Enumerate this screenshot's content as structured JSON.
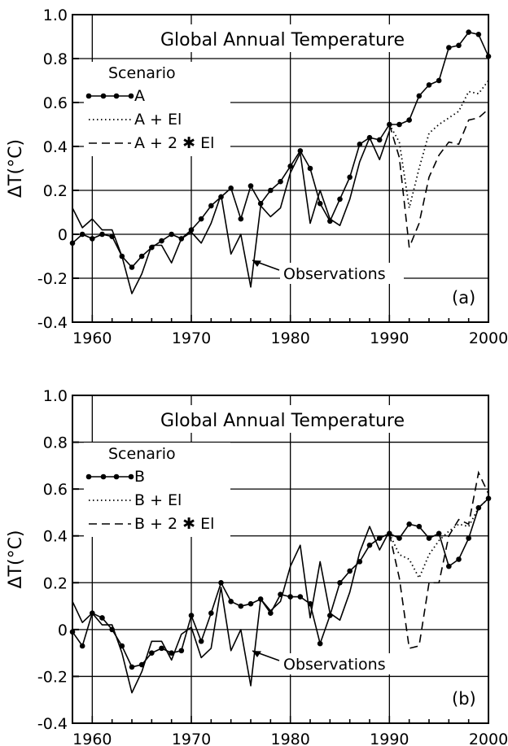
{
  "chart_data": [
    {
      "type": "line",
      "panel_label": "(a)",
      "title": "Global Annual Temperature",
      "xlabel": "",
      "ylabel": "ΔT(°C)",
      "xlim": [
        1958,
        2000
      ],
      "ylim": [
        -0.4,
        1.0
      ],
      "x_ticks": [
        1960,
        1970,
        1980,
        1990,
        2000
      ],
      "y_ticks": [
        -0.4,
        -0.2,
        0,
        0.2,
        0.4,
        0.6,
        0.8,
        1.0
      ],
      "y_tick_labels": [
        "-0.4",
        "-0.2",
        "0",
        "0.2",
        "0.4",
        "0.6",
        "0.8",
        "1.0"
      ],
      "grid": true,
      "legend_title": "Scenario",
      "legend_position": "top-left",
      "annotation": "Observations",
      "series": [
        {
          "name": "A",
          "style": "line-with-dots",
          "x": [
            1958,
            1959,
            1960,
            1961,
            1962,
            1963,
            1964,
            1965,
            1966,
            1967,
            1968,
            1969,
            1970,
            1971,
            1972,
            1973,
            1974,
            1975,
            1976,
            1977,
            1978,
            1979,
            1980,
            1981,
            1982,
            1983,
            1984,
            1985,
            1986,
            1987,
            1988,
            1989,
            1990,
            1991,
            1992,
            1993,
            1994,
            1995,
            1996,
            1997,
            1998,
            1999,
            2000
          ],
          "y": [
            -0.04,
            0.0,
            -0.02,
            0.0,
            -0.01,
            -0.1,
            -0.15,
            -0.1,
            -0.06,
            -0.03,
            0.0,
            -0.02,
            0.02,
            0.07,
            0.13,
            0.17,
            0.21,
            0.07,
            0.22,
            0.14,
            0.2,
            0.24,
            0.31,
            0.38,
            0.3,
            0.14,
            0.06,
            0.16,
            0.26,
            0.41,
            0.44,
            0.43,
            0.5,
            0.5,
            0.52,
            0.63,
            0.68,
            0.7,
            0.85,
            0.86,
            0.92,
            0.91,
            0.81
          ]
        },
        {
          "name": "A + El",
          "style": "dotted",
          "x": [
            1990,
            1991,
            1992,
            1993,
            1994,
            1995,
            1996,
            1997,
            1998,
            1999,
            2000
          ],
          "y": [
            0.5,
            0.42,
            0.12,
            0.3,
            0.46,
            0.5,
            0.53,
            0.56,
            0.65,
            0.64,
            0.7
          ]
        },
        {
          "name": "A + 2 ✱ El",
          "style": "dashed",
          "x": [
            1990,
            1991,
            1992,
            1993,
            1994,
            1995,
            1996,
            1997,
            1998,
            1999,
            2000
          ],
          "y": [
            0.5,
            0.35,
            -0.06,
            0.05,
            0.26,
            0.36,
            0.42,
            0.41,
            0.52,
            0.53,
            0.57
          ]
        },
        {
          "name": "Observations",
          "style": "solid",
          "x": [
            1958,
            1959,
            1960,
            1961,
            1962,
            1963,
            1964,
            1965,
            1966,
            1967,
            1968,
            1969,
            1970,
            1971,
            1972,
            1973,
            1974,
            1975,
            1976,
            1977,
            1978,
            1979,
            1980,
            1981,
            1982,
            1983,
            1984,
            1985,
            1986,
            1987,
            1988,
            1989,
            1990
          ],
          "y": [
            0.12,
            0.03,
            0.07,
            0.02,
            0.02,
            -0.1,
            -0.27,
            -0.18,
            -0.05,
            -0.05,
            -0.13,
            -0.02,
            0.01,
            -0.04,
            0.05,
            0.18,
            -0.09,
            0.0,
            -0.24,
            0.13,
            0.08,
            0.12,
            0.28,
            0.37,
            0.05,
            0.2,
            0.07,
            0.04,
            0.16,
            0.33,
            0.44,
            0.34,
            0.47
          ]
        }
      ]
    },
    {
      "type": "line",
      "panel_label": "(b)",
      "title": "Global Annual Temperature",
      "xlabel": "",
      "ylabel": "ΔT(°C)",
      "xlim": [
        1958,
        2000
      ],
      "ylim": [
        -0.4,
        1.0
      ],
      "x_ticks": [
        1960,
        1970,
        1980,
        1990,
        2000
      ],
      "y_ticks": [
        -0.4,
        -0.2,
        0,
        0.2,
        0.4,
        0.6,
        0.8,
        1.0
      ],
      "y_tick_labels": [
        "-0.4",
        "-0.2",
        "0",
        "0.2",
        "0.4",
        "0.6",
        "0.8",
        "1.0"
      ],
      "grid": true,
      "legend_title": "Scenario",
      "legend_position": "top-left",
      "annotation": "Observations",
      "series": [
        {
          "name": "B",
          "style": "line-with-dots",
          "x": [
            1958,
            1959,
            1960,
            1961,
            1962,
            1963,
            1964,
            1965,
            1966,
            1967,
            1968,
            1969,
            1970,
            1971,
            1972,
            1973,
            1974,
            1975,
            1976,
            1977,
            1978,
            1979,
            1980,
            1981,
            1982,
            1983,
            1984,
            1985,
            1986,
            1987,
            1988,
            1989,
            1990,
            1991,
            1992,
            1993,
            1994,
            1995,
            1996,
            1997,
            1998,
            1999,
            2000
          ],
          "y": [
            -0.01,
            -0.07,
            0.07,
            0.05,
            0.0,
            -0.07,
            -0.16,
            -0.15,
            -0.1,
            -0.08,
            -0.1,
            -0.09,
            0.06,
            -0.05,
            0.07,
            0.2,
            0.12,
            0.1,
            0.11,
            0.13,
            0.07,
            0.15,
            0.14,
            0.14,
            0.11,
            -0.06,
            0.06,
            0.2,
            0.25,
            0.29,
            0.36,
            0.39,
            0.41,
            0.39,
            0.45,
            0.44,
            0.39,
            0.41,
            0.27,
            0.3,
            0.39,
            0.52,
            0.56
          ]
        },
        {
          "name": "B + El",
          "style": "dotted",
          "x": [
            1990,
            1991,
            1992,
            1993,
            1994,
            1995,
            1996,
            1997,
            1998,
            1999,
            2000
          ],
          "y": [
            0.41,
            0.32,
            0.3,
            0.22,
            0.32,
            0.38,
            0.42,
            0.45,
            0.44,
            0.52,
            0.56
          ]
        },
        {
          "name": "B + 2 ✱ El",
          "style": "dashed",
          "x": [
            1990,
            1991,
            1992,
            1993,
            1994,
            1995,
            1996,
            1997,
            1998,
            1999,
            2000
          ],
          "y": [
            0.41,
            0.22,
            -0.08,
            -0.07,
            0.2,
            0.2,
            0.4,
            0.47,
            0.45,
            0.67,
            0.58
          ]
        },
        {
          "name": "Observations",
          "style": "solid",
          "x": [
            1958,
            1959,
            1960,
            1961,
            1962,
            1963,
            1964,
            1965,
            1966,
            1967,
            1968,
            1969,
            1970,
            1971,
            1972,
            1973,
            1974,
            1975,
            1976,
            1977,
            1978,
            1979,
            1980,
            1981,
            1982,
            1983,
            1984,
            1985,
            1986,
            1987,
            1988,
            1989,
            1990
          ],
          "y": [
            0.12,
            0.03,
            0.07,
            0.02,
            0.02,
            -0.1,
            -0.27,
            -0.18,
            -0.05,
            -0.05,
            -0.13,
            -0.02,
            0.01,
            -0.12,
            -0.08,
            0.18,
            -0.09,
            0.0,
            -0.24,
            0.13,
            0.08,
            0.12,
            0.27,
            0.36,
            0.05,
            0.29,
            0.07,
            0.04,
            0.16,
            0.33,
            0.44,
            0.34,
            0.42
          ]
        }
      ]
    }
  ]
}
